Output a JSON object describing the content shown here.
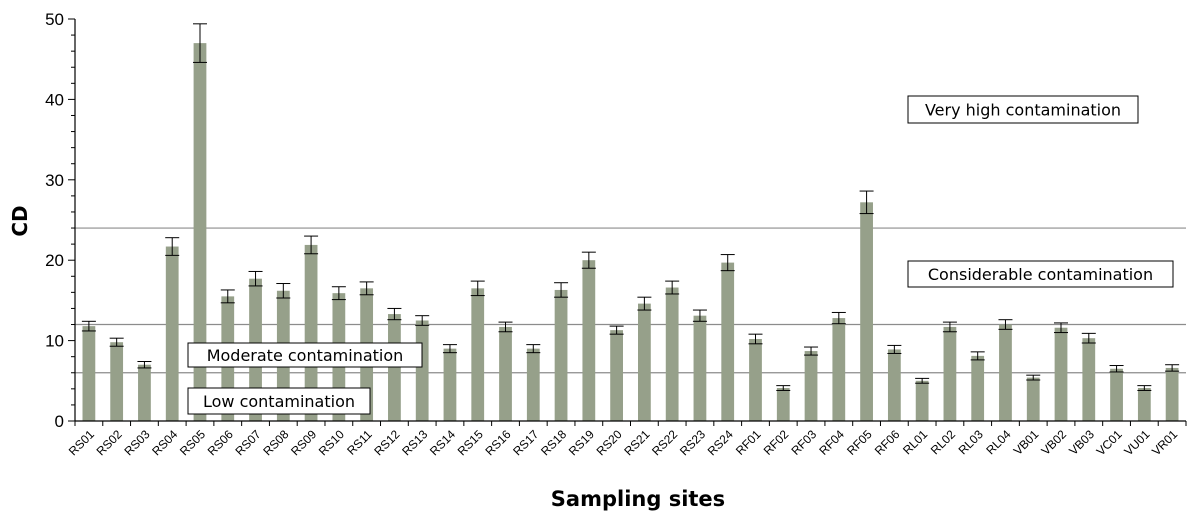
{
  "chart_data": {
    "type": "bar",
    "xlabel": "Sampling sites",
    "ylabel": "CD",
    "ylim": [
      0,
      50
    ],
    "yticks": [
      0,
      10,
      20,
      30,
      40,
      50
    ],
    "grid": false,
    "bar_color": "#96a08a",
    "error_bar_color": "#000000",
    "threshold_line_color": "#8c8c8c",
    "categories": [
      "RS01",
      "RS02",
      "RS03",
      "RS04",
      "RS05",
      "RS06",
      "RS07",
      "RS08",
      "RS09",
      "RS10",
      "RS11",
      "RS12",
      "RS13",
      "RS14",
      "RS15",
      "RS16",
      "RS17",
      "RS18",
      "RS19",
      "RS20",
      "RS21",
      "RS22",
      "RS23",
      "RS24",
      "RF01",
      "RF02",
      "RF03",
      "RF04",
      "RF05",
      "RF06",
      "RL01",
      "RL02",
      "RL03",
      "RL04",
      "VB01",
      "VB02",
      "VB03",
      "VC01",
      "VU01",
      "VR01"
    ],
    "values": [
      11.8,
      9.8,
      7.0,
      21.7,
      47.0,
      15.5,
      17.7,
      16.2,
      21.9,
      15.9,
      16.5,
      13.3,
      12.5,
      9.0,
      16.5,
      11.7,
      9.0,
      16.3,
      20.0,
      11.3,
      14.6,
      16.6,
      13.1,
      19.7,
      10.2,
      4.1,
      8.7,
      12.8,
      27.2,
      8.9,
      5.0,
      11.7,
      8.1,
      12.0,
      5.4,
      11.6,
      10.3,
      6.5,
      4.1,
      6.6
    ],
    "errors": [
      0.6,
      0.5,
      0.4,
      1.1,
      2.4,
      0.8,
      0.9,
      0.9,
      1.1,
      0.8,
      0.8,
      0.7,
      0.6,
      0.5,
      0.9,
      0.6,
      0.5,
      0.9,
      1.0,
      0.5,
      0.8,
      0.8,
      0.7,
      1.0,
      0.6,
      0.3,
      0.5,
      0.7,
      1.4,
      0.5,
      0.3,
      0.6,
      0.5,
      0.6,
      0.3,
      0.6,
      0.6,
      0.4,
      0.3,
      0.4
    ],
    "thresholds": [
      6,
      12,
      24
    ],
    "zones": [
      {
        "label": "Low contamination"
      },
      {
        "label": "Moderate contamination"
      },
      {
        "label": "Considerable contamination"
      },
      {
        "label": "Very high contamination"
      }
    ]
  }
}
